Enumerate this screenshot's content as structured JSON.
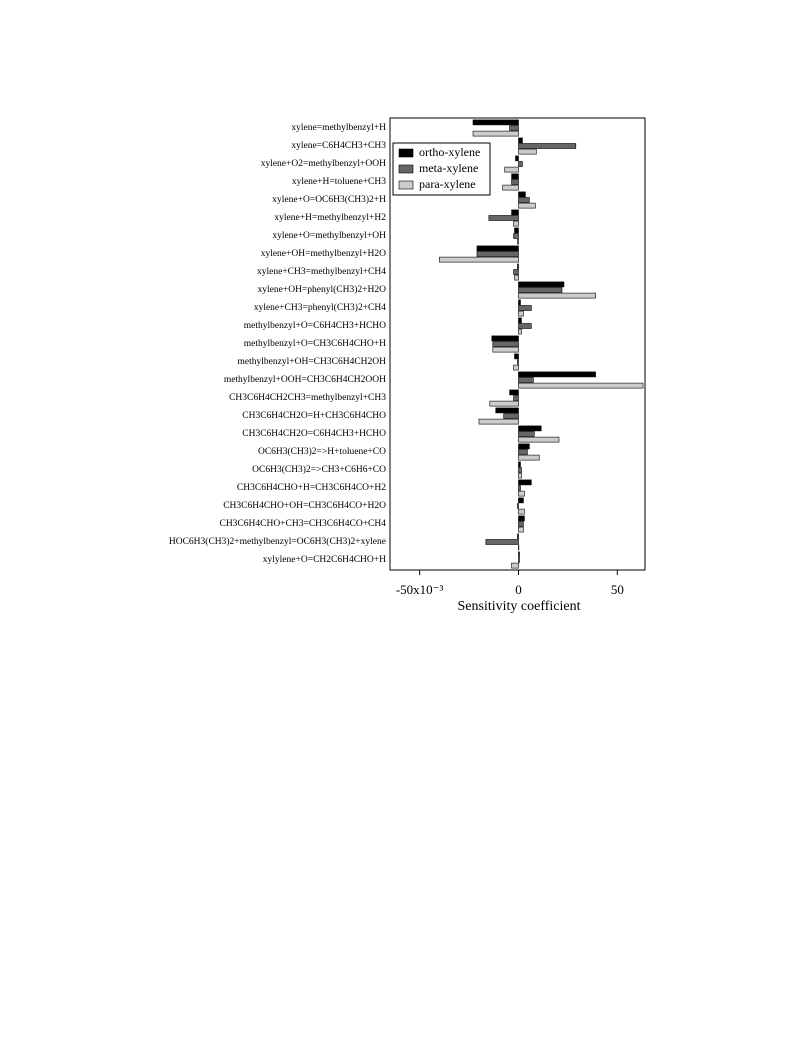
{
  "chart_data": {
    "type": "barh",
    "xlabel": "Sensitivity coefficient",
    "categories": [
      "xylene=methylbenzyl+H",
      "xylene=C6H4CH3+CH3",
      "xylene+O2=methylbenzyl+OOH",
      "xylene+H=toluene+CH3",
      "xylene+O=OC6H3(CH3)2+H",
      "xylene+H=methylbenzyl+H2",
      "xylene+O=methylbenzyl+OH",
      "xylene+OH=methylbenzyl+H2O",
      "xylene+CH3=methylbenzyl+CH4",
      "xylene+OH=phenyl(CH3)2+H2O",
      "xylene+CH3=phenyl(CH3)2+CH4",
      "methylbenzyl+O=C6H4CH3+HCHO",
      "methylbenzyl+O=CH3C6H4CHO+H",
      "methylbenzyl+OH=CH3C6H4CH2OH",
      "methylbenzyl+OOH=CH3C6H4CH2OOH",
      "CH3C6H4CH2CH3=methylbenzyl+CH3",
      "CH3C6H4CH2O=H+CH3C6H4CHO",
      "CH3C6H4CH2O=C6H4CH3+HCHO",
      "OC6H3(CH3)2=>H+toluene+CO",
      "OC6H3(CH3)2=>CH3+C6H6+CO",
      "CH3C6H4CHO+H=CH3C6H4CO+H2",
      "CH3C6H4CHO+OH=CH3C6H4CO+H2O",
      "CH3C6H4CHO+CH3=CH3C6H4CO+CH4",
      "HOC6H3(CH3)2+methylbenzyl=OC6H3(CH3)2+xylene",
      "xylylene+O=CH2C6H4CHO+H"
    ],
    "series": [
      {
        "name": "ortho-xylene",
        "color": "#000000",
        "values": [
          -23,
          2,
          -1.5,
          -3.5,
          3.5,
          -3.5,
          -2,
          -21,
          -0.5,
          23,
          1,
          1.5,
          -13.5,
          -2,
          39,
          -4.5,
          -11.5,
          11.5,
          5.5,
          1,
          6.5,
          2.5,
          3,
          -0.5,
          0.5
        ]
      },
      {
        "name": "meta-xylene",
        "color": "#666666",
        "values": [
          -4.5,
          29,
          2,
          -3.5,
          5.5,
          -15,
          -2.5,
          -21,
          -2.5,
          22,
          6.5,
          6.5,
          -13,
          -0.5,
          7.5,
          -2.5,
          -7.5,
          8,
          4.5,
          1.5,
          1,
          -0.5,
          2.5,
          -16.5,
          0.5
        ]
      },
      {
        "name": "para-xylene",
        "color": "#cccccc",
        "values": [
          -23,
          9,
          -7,
          -8,
          8.5,
          -2.5,
          -0.5,
          -40,
          -2,
          39,
          2.5,
          1.5,
          -13,
          -2.5,
          63,
          -14.5,
          -20,
          20.5,
          10.5,
          1.5,
          3,
          3,
          2.5,
          0.2,
          -3.5
        ]
      }
    ],
    "xlim": [
      -65,
      64
    ],
    "xticks": [
      {
        "value": -50,
        "label": "-50x10⁻³"
      },
      0,
      50
    ],
    "grid": false,
    "legend": "top-left"
  }
}
